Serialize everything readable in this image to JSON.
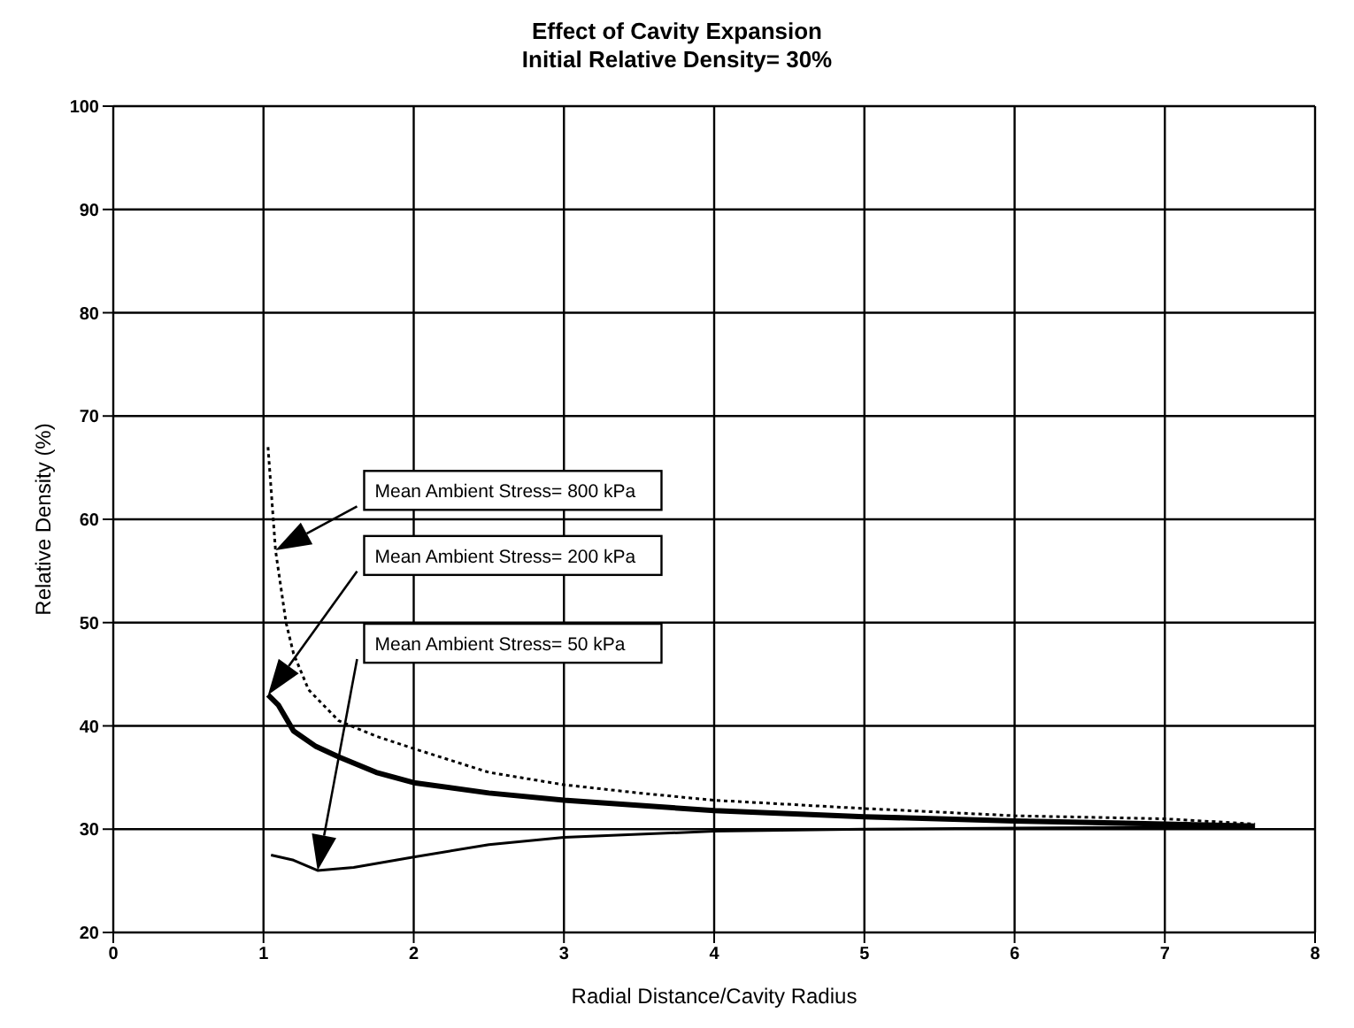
{
  "chart_data": {
    "type": "line",
    "title": "Effect of Cavity Expansion",
    "subtitle": "Initial Relative Density= 30%",
    "xlabel": "Radial Distance/Cavity Radius",
    "ylabel": "Relative Density (%)",
    "xlim": [
      0,
      8
    ],
    "xticks": [
      0,
      1,
      2,
      3,
      4,
      5,
      6,
      7,
      8
    ],
    "ylim": [
      20,
      100
    ],
    "yticks": [
      20,
      30,
      40,
      50,
      60,
      70,
      80,
      90,
      100
    ],
    "grid": true,
    "marker": "none",
    "series": [
      {
        "color": "#000000",
        "line_style": "dotted",
        "x": [
          1.03,
          1.08,
          1.15,
          1.2,
          1.3,
          1.5,
          1.75,
          2,
          2.5,
          3,
          3.5,
          4,
          5,
          6,
          7,
          7.6
        ],
        "values": [
          67,
          57,
          50,
          47,
          43.5,
          40.5,
          39,
          37.8,
          35.5,
          34.3,
          33.5,
          32.8,
          32,
          31.3,
          31,
          30.5
        ]
      },
      {
        "color": "#000000",
        "line_style": "solid",
        "x": [
          1.03,
          1.1,
          1.2,
          1.35,
          1.5,
          1.75,
          2,
          2.5,
          3,
          4,
          5,
          6,
          7,
          7.6
        ],
        "values": [
          43,
          42,
          39.5,
          38,
          37,
          35.5,
          34.5,
          33.5,
          32.8,
          31.8,
          31.2,
          30.8,
          30.5,
          30.3
        ]
      },
      {
        "color": "#000000",
        "line_style": "solid",
        "x": [
          1.05,
          1.2,
          1.36,
          1.6,
          2,
          2.5,
          3,
          4,
          5,
          6,
          7,
          7.6
        ],
        "values": [
          27.5,
          27,
          26,
          26.3,
          27.3,
          28.5,
          29.2,
          29.8,
          30,
          30.1,
          30.2,
          30.2
        ]
      }
    ],
    "annotations": [
      "Mean Ambient Stress= 800 kPa",
      "Mean Ambient Stress= 200 kPa",
      "Mean Ambient Stress= 50 kPa"
    ]
  }
}
